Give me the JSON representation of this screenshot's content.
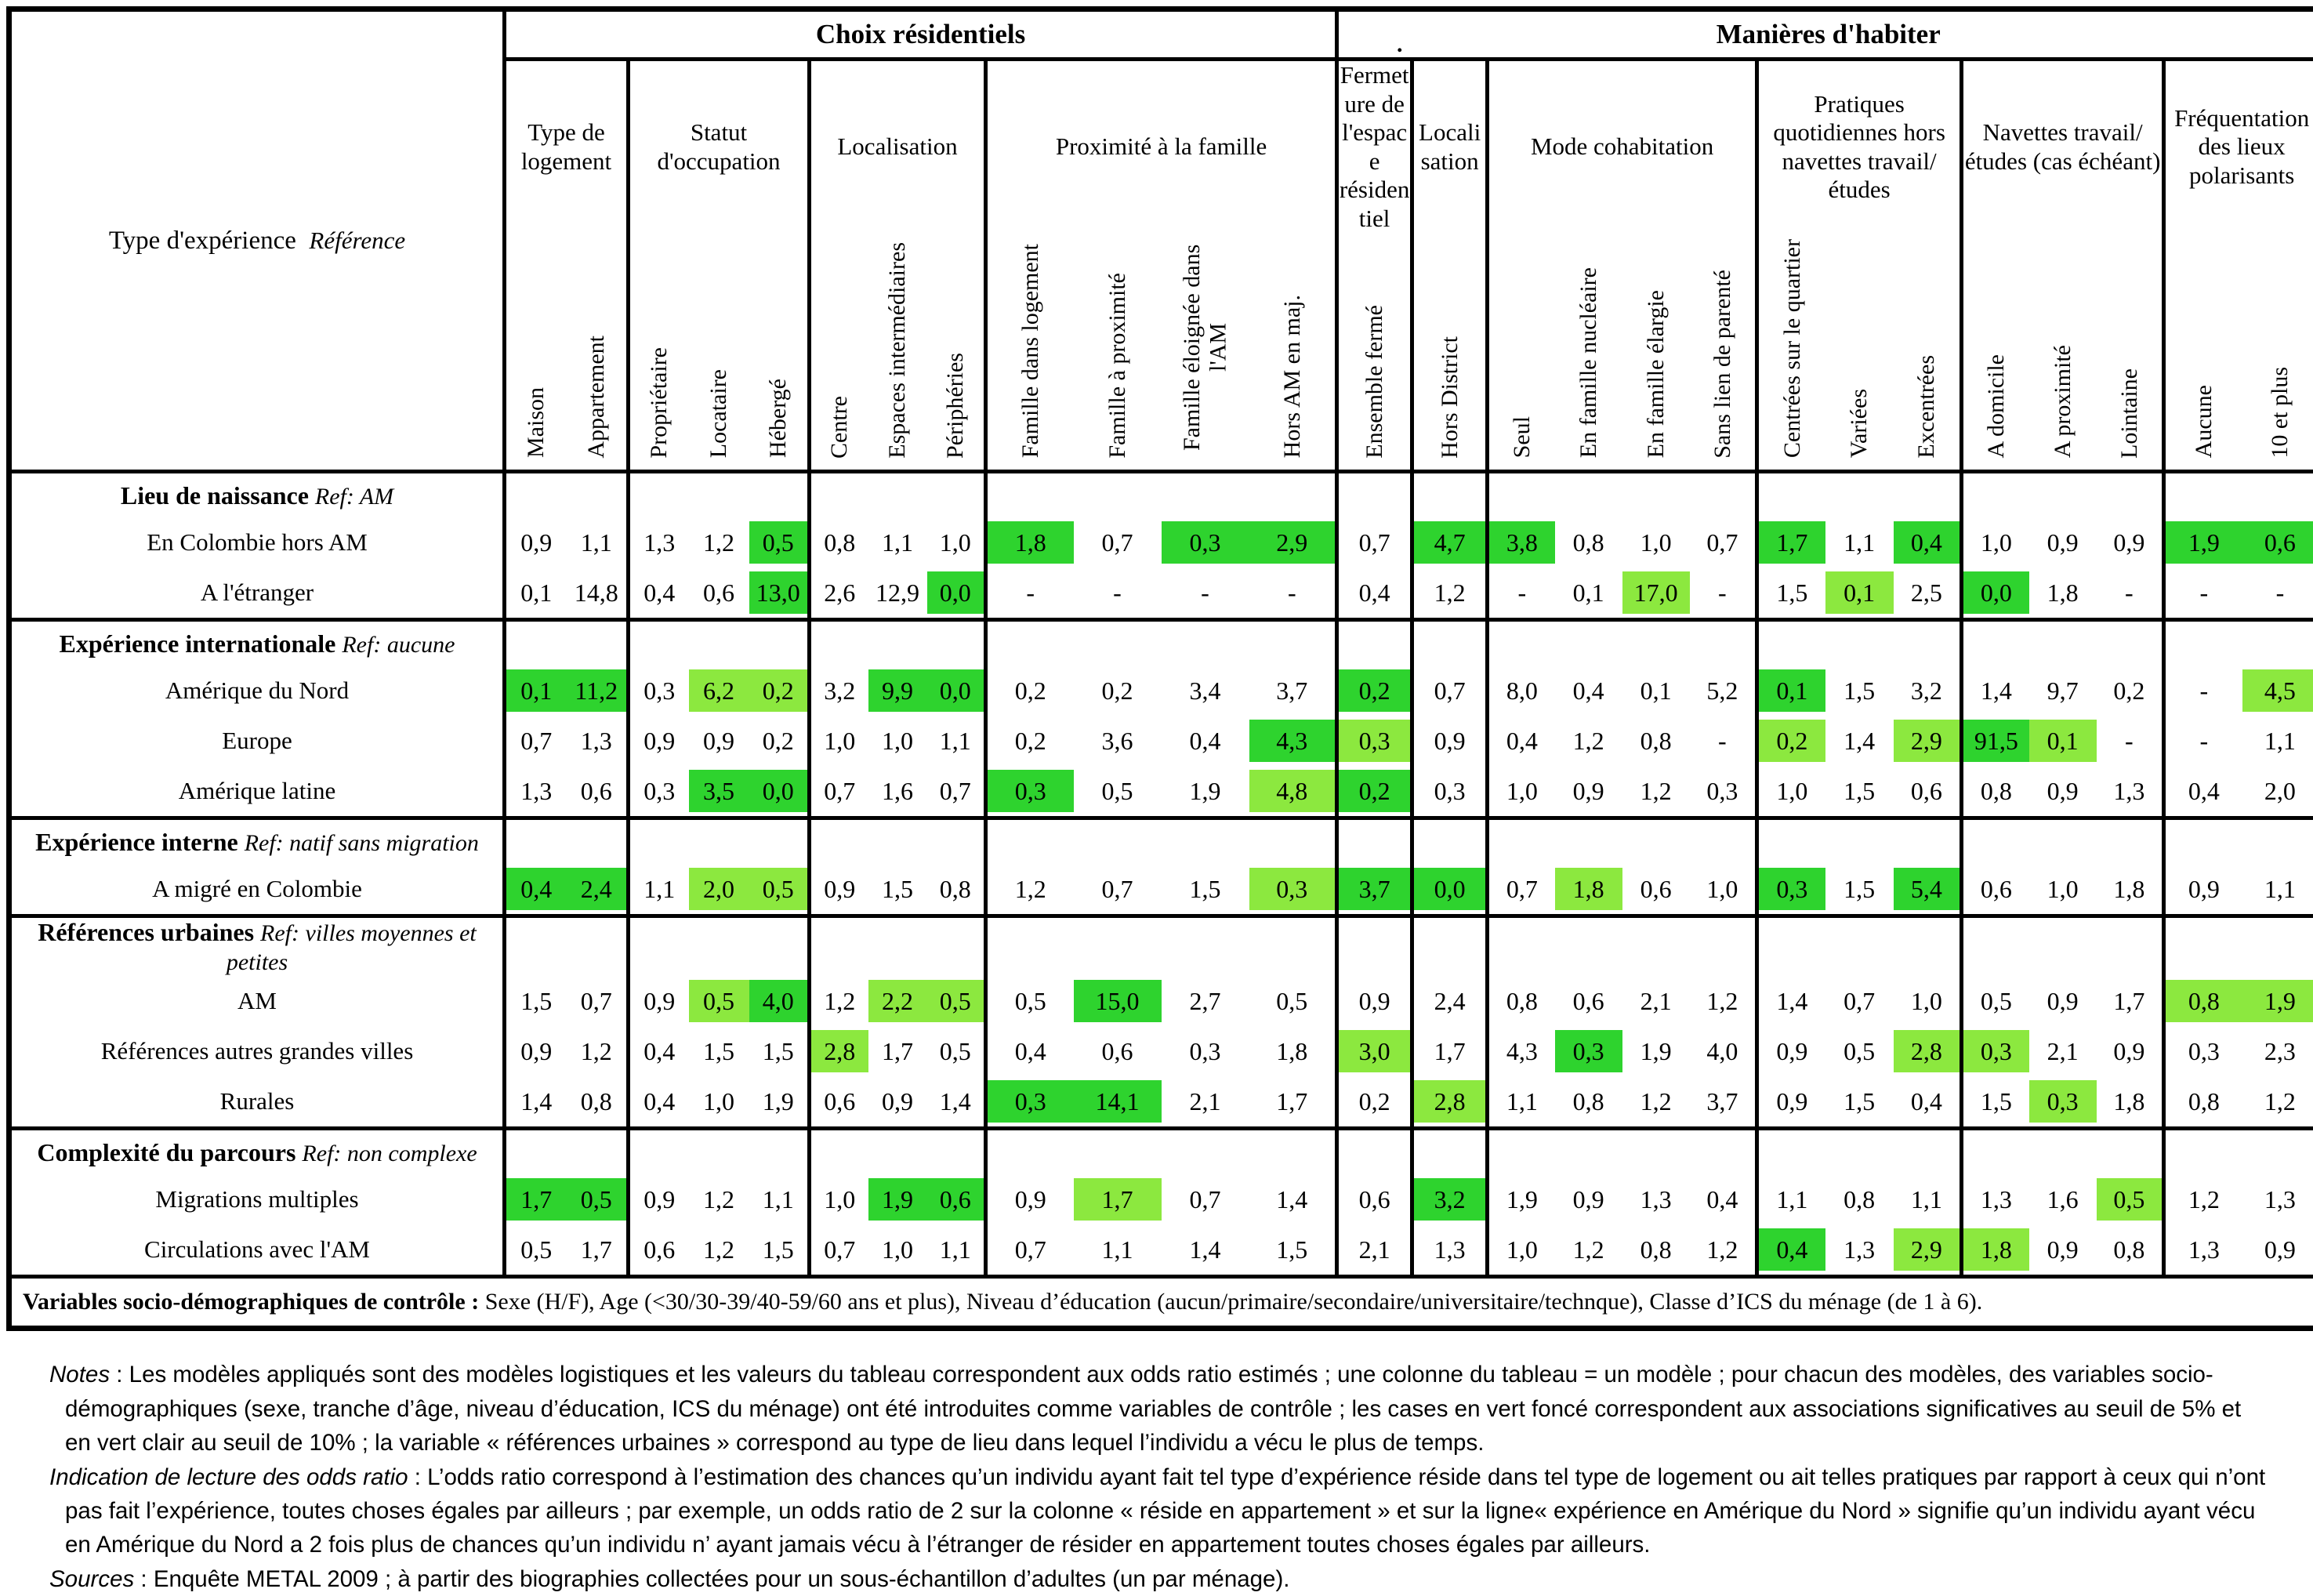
{
  "colors": {
    "significant_5pct": "#2ed32e",
    "significant_10pct": "#8ce83f"
  },
  "table": {
    "corner_label": "Type d'expérience",
    "corner_ref": "Référence",
    "stray_dot": ".",
    "top_groups": [
      {
        "label": "Choix résidentiels",
        "span": 12
      },
      {
        "label": "Manières d'habiter",
        "span": 14
      }
    ],
    "groups": [
      {
        "label": "Type de logement",
        "cols": [
          "Maison",
          "Appartement"
        ]
      },
      {
        "label": "Statut d'occupation",
        "cols": [
          "Propriétaire",
          "Locataire",
          "Hébergé"
        ]
      },
      {
        "label": "Localisation",
        "cols": [
          "Centre",
          "Espaces intermédiaires",
          "Périphéries"
        ]
      },
      {
        "label": "Proximité à la famille",
        "cols": [
          "Famille dans logement",
          "Famille à proximité",
          "Famille éloignée dans l'AM",
          "Hors AM en maj."
        ]
      },
      {
        "label": "Fermet\nure de\nl'espac\ne\nrésiden\ntiel",
        "cols": [
          "Ensemble fermé"
        ]
      },
      {
        "label": "Locali\nsation",
        "cols": [
          "Hors District"
        ]
      },
      {
        "label": "Mode cohabitation",
        "cols": [
          "Seul",
          "En famille nucléaire",
          "En famille élargie",
          "Sans lien de parenté"
        ]
      },
      {
        "label": "Pratiques quotidiennes hors navettes travail/études",
        "cols": [
          "Centrées sur le quartier",
          "Variées",
          "Excentrées"
        ]
      },
      {
        "label": "Navettes travail/études (cas échéant)",
        "cols": [
          "A domicile",
          "A proximité",
          "Lointaine"
        ]
      },
      {
        "label": "Fréquentation des lieux polarisants",
        "cols": [
          "Aucune",
          "10 et plus"
        ]
      }
    ],
    "rows": [
      {
        "kind": "section",
        "label": "Lieu de naissance",
        "ref": "Ref: AM"
      },
      {
        "kind": "data",
        "label": "En Colombie hors AM",
        "values": [
          "0,9",
          "1,1",
          "1,3",
          "1,2",
          "0,5",
          "0,8",
          "1,1",
          "1,0",
          "1,8",
          "0,7",
          "0,3",
          "2,9",
          "0,7",
          "4,7",
          "3,8",
          "0,8",
          "1,0",
          "0,7",
          "1,7",
          "1,1",
          "0,4",
          "1,0",
          "0,9",
          "0,9",
          "1,9",
          "0,6"
        ],
        "hl": [
          0,
          0,
          0,
          0,
          2,
          0,
          0,
          0,
          2,
          0,
          2,
          2,
          0,
          2,
          2,
          0,
          0,
          0,
          2,
          0,
          2,
          0,
          0,
          0,
          2,
          2
        ]
      },
      {
        "kind": "data",
        "label": "A l'étranger",
        "values": [
          "0,1",
          "14,8",
          "0,4",
          "0,6",
          "13,0",
          "2,6",
          "12,9",
          "0,0",
          "-",
          "-",
          "-",
          "-",
          "0,4",
          "1,2",
          "-",
          "0,1",
          "17,0",
          "-",
          "1,5",
          "0,1",
          "2,5",
          "0,0",
          "1,8",
          "-",
          "-",
          "-"
        ],
        "hl": [
          0,
          0,
          0,
          0,
          2,
          0,
          0,
          2,
          0,
          0,
          0,
          0,
          0,
          0,
          0,
          0,
          1,
          0,
          0,
          1,
          0,
          2,
          0,
          0,
          0,
          0
        ]
      },
      {
        "kind": "section",
        "label": "Expérience internationale",
        "ref": "Ref: aucune"
      },
      {
        "kind": "data",
        "label": "Amérique du Nord",
        "values": [
          "0,1",
          "11,2",
          "0,3",
          "6,2",
          "0,2",
          "3,2",
          "9,9",
          "0,0",
          "0,2",
          "0,2",
          "3,4",
          "3,7",
          "0,2",
          "0,7",
          "8,0",
          "0,4",
          "0,1",
          "5,2",
          "0,1",
          "1,5",
          "3,2",
          "1,4",
          "9,7",
          "0,2",
          "-",
          "4,5"
        ],
        "hl": [
          2,
          2,
          0,
          1,
          1,
          0,
          2,
          2,
          0,
          0,
          0,
          0,
          2,
          0,
          0,
          0,
          0,
          0,
          2,
          0,
          0,
          0,
          0,
          0,
          0,
          1
        ]
      },
      {
        "kind": "data",
        "label": "Europe",
        "values": [
          "0,7",
          "1,3",
          "0,9",
          "0,9",
          "0,2",
          "1,0",
          "1,0",
          "1,1",
          "0,2",
          "3,6",
          "0,4",
          "4,3",
          "0,3",
          "0,9",
          "0,4",
          "1,2",
          "0,8",
          "-",
          "0,2",
          "1,4",
          "2,9",
          "91,5",
          "0,1",
          "-",
          "-",
          "1,1"
        ],
        "hl": [
          0,
          0,
          0,
          0,
          0,
          0,
          0,
          0,
          0,
          0,
          0,
          2,
          1,
          0,
          0,
          0,
          0,
          0,
          1,
          0,
          1,
          2,
          1,
          0,
          0,
          0
        ]
      },
      {
        "kind": "data",
        "label": "Amérique latine",
        "values": [
          "1,3",
          "0,6",
          "0,3",
          "3,5",
          "0,0",
          "0,7",
          "1,6",
          "0,7",
          "0,3",
          "0,5",
          "1,9",
          "4,8",
          "0,2",
          "0,3",
          "1,0",
          "0,9",
          "1,2",
          "0,3",
          "1,0",
          "1,5",
          "0,6",
          "0,8",
          "0,9",
          "1,3",
          "0,4",
          "2,0"
        ],
        "hl": [
          0,
          0,
          0,
          2,
          2,
          0,
          0,
          0,
          2,
          0,
          0,
          1,
          2,
          0,
          0,
          0,
          0,
          0,
          0,
          0,
          0,
          0,
          0,
          0,
          0,
          0
        ]
      },
      {
        "kind": "section",
        "label": "Expérience interne",
        "ref": "Ref: natif sans migration"
      },
      {
        "kind": "data",
        "label": "A migré en Colombie",
        "values": [
          "0,4",
          "2,4",
          "1,1",
          "2,0",
          "0,5",
          "0,9",
          "1,5",
          "0,8",
          "1,2",
          "0,7",
          "1,5",
          "0,3",
          "3,7",
          "0,0",
          "0,7",
          "1,8",
          "0,6",
          "1,0",
          "0,3",
          "1,5",
          "5,4",
          "0,6",
          "1,0",
          "1,8",
          "0,9",
          "1,1"
        ],
        "hl": [
          2,
          2,
          0,
          1,
          1,
          0,
          0,
          0,
          0,
          0,
          0,
          1,
          2,
          2,
          0,
          1,
          0,
          0,
          2,
          0,
          2,
          0,
          0,
          0,
          0,
          0
        ]
      },
      {
        "kind": "section",
        "label": "Références urbaines",
        "ref": "Ref: villes moyennes et petites"
      },
      {
        "kind": "data",
        "label": "AM",
        "values": [
          "1,5",
          "0,7",
          "0,9",
          "0,5",
          "4,0",
          "1,2",
          "2,2",
          "0,5",
          "0,5",
          "15,0",
          "2,7",
          "0,5",
          "0,9",
          "2,4",
          "0,8",
          "0,6",
          "2,1",
          "1,2",
          "1,4",
          "0,7",
          "1,0",
          "0,5",
          "0,9",
          "1,7",
          "0,8",
          "1,9"
        ],
        "hl": [
          0,
          0,
          0,
          1,
          2,
          0,
          1,
          1,
          0,
          2,
          0,
          0,
          0,
          0,
          0,
          0,
          0,
          0,
          0,
          0,
          0,
          0,
          0,
          0,
          1,
          1
        ]
      },
      {
        "kind": "data",
        "label": "Références autres grandes villes",
        "values": [
          "0,9",
          "1,2",
          "0,4",
          "1,5",
          "1,5",
          "2,8",
          "1,7",
          "0,5",
          "0,4",
          "0,6",
          "0,3",
          "1,8",
          "3,0",
          "1,7",
          "4,3",
          "0,3",
          "1,9",
          "4,0",
          "0,9",
          "0,5",
          "2,8",
          "0,3",
          "2,1",
          "0,9",
          "0,3",
          "2,3"
        ],
        "hl": [
          0,
          0,
          0,
          0,
          0,
          1,
          0,
          0,
          0,
          0,
          0,
          0,
          1,
          0,
          0,
          2,
          0,
          0,
          0,
          0,
          1,
          1,
          0,
          0,
          0,
          0
        ]
      },
      {
        "kind": "data",
        "label": "Rurales",
        "values": [
          "1,4",
          "0,8",
          "0,4",
          "1,0",
          "1,9",
          "0,6",
          "0,9",
          "1,4",
          "0,3",
          "14,1",
          "2,1",
          "1,7",
          "0,2",
          "2,8",
          "1,1",
          "0,8",
          "1,2",
          "3,7",
          "0,9",
          "1,5",
          "0,4",
          "1,5",
          "0,3",
          "1,8",
          "0,8",
          "1,2"
        ],
        "hl": [
          0,
          0,
          0,
          0,
          0,
          0,
          0,
          0,
          2,
          2,
          0,
          0,
          0,
          1,
          0,
          0,
          0,
          0,
          0,
          0,
          0,
          0,
          1,
          0,
          0,
          0
        ]
      },
      {
        "kind": "section",
        "label": "Complexité du parcours",
        "ref": "Ref: non complexe"
      },
      {
        "kind": "data",
        "label": "Migrations multiples",
        "values": [
          "1,7",
          "0,5",
          "0,9",
          "1,2",
          "1,1",
          "1,0",
          "1,9",
          "0,6",
          "0,9",
          "1,7",
          "0,7",
          "1,4",
          "0,6",
          "3,2",
          "1,9",
          "0,9",
          "1,3",
          "0,4",
          "1,1",
          "0,8",
          "1,1",
          "1,3",
          "1,6",
          "0,5",
          "1,2",
          "1,3"
        ],
        "hl": [
          2,
          2,
          0,
          0,
          0,
          0,
          2,
          2,
          0,
          1,
          0,
          0,
          0,
          2,
          0,
          0,
          0,
          0,
          0,
          0,
          0,
          0,
          0,
          1,
          0,
          0
        ]
      },
      {
        "kind": "data",
        "label": "Circulations avec l'AM",
        "values": [
          "0,5",
          "1,7",
          "0,6",
          "1,2",
          "1,5",
          "0,7",
          "1,0",
          "1,1",
          "0,7",
          "1,1",
          "1,4",
          "1,5",
          "2,1",
          "1,3",
          "1,0",
          "1,2",
          "0,8",
          "1,2",
          "0,4",
          "1,3",
          "2,9",
          "1,8",
          "0,9",
          "0,8",
          "1,3",
          "0,9"
        ],
        "hl": [
          0,
          0,
          0,
          0,
          0,
          0,
          0,
          0,
          0,
          0,
          0,
          0,
          0,
          0,
          0,
          0,
          0,
          0,
          2,
          0,
          1,
          1,
          0,
          0,
          0,
          0
        ]
      }
    ],
    "footer": {
      "lead": "Variables socio-démographiques de contrôle :",
      "text": " Sexe (H/F), Age (<30/30-39/40-59/60 ans et plus), Niveau d’éducation (aucun/primaire/secondaire/universitaire/technque), Classe d’ICS du ménage (de 1 à 6)."
    }
  },
  "notes": [
    {
      "lead": "Notes",
      "text": " : Les modèles appliqués sont des modèles logistiques et les valeurs du tableau correspondent aux odds ratio estimés ; une colonne du tableau = un modèle ; pour chacun des modèles, des variables socio-démographiques (sexe, tranche d’âge, niveau d’éducation, ICS du ménage) ont été introduites comme variables de contrôle ; les cases en vert foncé correspondent aux associations significatives au seuil de 5% et en vert clair au seuil de 10% ; la variable « références  urbaines » correspond au type de lieu dans lequel l’individu a vécu le plus de temps."
    },
    {
      "lead": "Indication de lecture des odds ratio",
      "text": " : L’odds ratio correspond à l’estimation des chances qu’un individu ayant fait tel type d’expérience réside dans tel type de logement ou ait telles pratiques par rapport à ceux qui n’ont pas fait l’expérience, toutes choses égales par ailleurs ; par exemple, un odds ratio de 2 sur la colonne « réside en appartement » et sur la ligne« expérience en Amérique du Nord » signifie  qu’un individu ayant vécu en Amérique du Nord a 2 fois plus de chances qu’un individu n’ ayant jamais vécu  à l’étranger de résider en appartement toutes choses égales par ailleurs."
    },
    {
      "lead": "Sources",
      "text": " : Enquête METAL 2009 ; à partir des biographies collectées pour un sous-échantillon d’adultes (un par ménage)."
    }
  ]
}
